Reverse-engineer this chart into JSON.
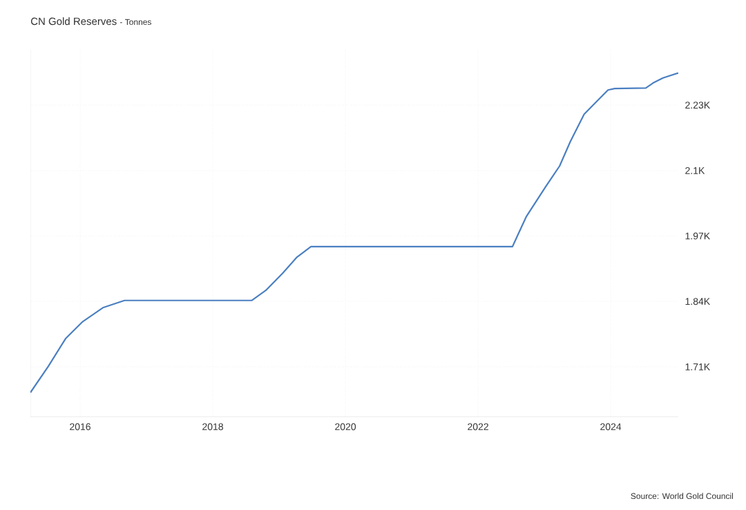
{
  "chart_data": {
    "type": "line",
    "title": "CN Gold Reserves",
    "subtitle": "- Tonnes",
    "x": [
      2015.25,
      2015.52,
      2015.78,
      2016.04,
      2016.35,
      2016.67,
      2017.5,
      2018.59,
      2018.8,
      2019.06,
      2019.27,
      2019.48,
      2020.5,
      2022.52,
      2022.6,
      2022.73,
      2023.02,
      2023.23,
      2023.39,
      2023.6,
      2023.81,
      2023.96,
      2024.06,
      2024.53,
      2024.64,
      2024.79,
      2025.02
    ],
    "series": [
      {
        "color": "#4a7fc1",
        "values": [
          1659,
          1711,
          1766,
          1800,
          1828,
          1842,
          1842,
          1842,
          1862,
          1897,
          1928,
          1949,
          1949,
          1949,
          1972,
          2009,
          2068,
          2109,
          2157,
          2212,
          2240,
          2260,
          2263,
          2264,
          2274,
          2284,
          2294
        ]
      }
    ],
    "xlim": [
      2015.25,
      2025.02
    ],
    "xticks": [
      2016,
      2018,
      2020,
      2022,
      2024
    ],
    "ylim": [
      1611,
      2340
    ],
    "yticks": [
      {
        "value": 1710,
        "label": "1.71K"
      },
      {
        "value": 1840,
        "label": "1.84K"
      },
      {
        "value": 1970,
        "label": "1.97K"
      },
      {
        "value": 2100,
        "label": "2.1K"
      },
      {
        "value": 2230,
        "label": "2.23K"
      }
    ],
    "grid": true,
    "marker": "none",
    "line_style": "solid",
    "annotations": [
      "Source: World Gold Council"
    ]
  }
}
